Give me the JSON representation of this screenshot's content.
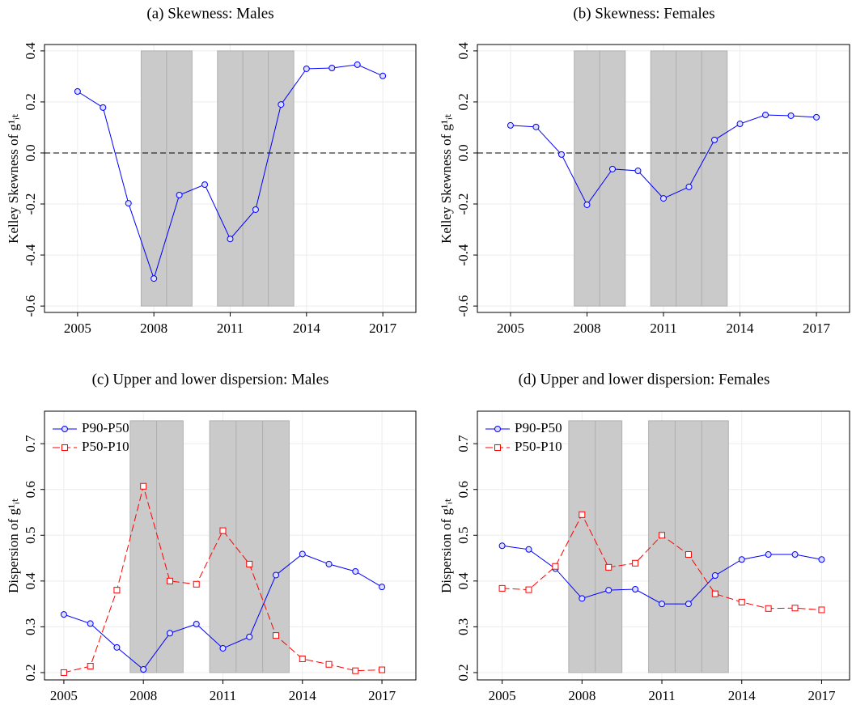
{
  "chart_data": [
    {
      "type": "line",
      "title": "(a) Skewness: Males",
      "y_label": "Kelley Skewness of g¹ᵢₜ",
      "x": [
        2005,
        2006,
        2007,
        2008,
        2009,
        2010,
        2011,
        2012,
        2013,
        2014,
        2015,
        2016,
        2017
      ],
      "xlim": [
        2003.7,
        2018.3
      ],
      "xticks": [
        2005,
        2008,
        2011,
        2014,
        2017
      ],
      "ylim": [
        -0.625,
        0.425
      ],
      "yticks": [
        -0.6,
        -0.4,
        -0.2,
        {
          "value": 0,
          "label": "0.0"
        },
        0.2,
        0.4
      ],
      "grid": true,
      "hline": 0,
      "shaded_years": [
        2008,
        2009,
        2011,
        2012,
        2013
      ],
      "shade_ylim": [
        -0.6,
        0.4
      ],
      "series": [
        {
          "color": "#0000ff",
          "marker": "circle",
          "dashed": false,
          "values": [
            0.241,
            0.178,
            -0.197,
            -0.492,
            -0.165,
            -0.124,
            -0.337,
            -0.222,
            0.19,
            0.33,
            0.333,
            0.346,
            0.302
          ]
        }
      ]
    },
    {
      "type": "line",
      "title": "(b) Skewness: Females",
      "y_label": "Kelley Skewness of g¹ᵢₜ",
      "x": [
        2005,
        2006,
        2007,
        2008,
        2009,
        2010,
        2011,
        2012,
        2013,
        2014,
        2015,
        2016,
        2017
      ],
      "xlim": [
        2003.7,
        2018.3
      ],
      "xticks": [
        2005,
        2008,
        2011,
        2014,
        2017
      ],
      "ylim": [
        -0.625,
        0.425
      ],
      "yticks": [
        -0.6,
        -0.4,
        -0.2,
        {
          "value": 0,
          "label": "0.0"
        },
        0.2,
        0.4
      ],
      "grid": true,
      "hline": 0,
      "shaded_years": [
        2008,
        2009,
        2011,
        2012,
        2013
      ],
      "shade_ylim": [
        -0.6,
        0.4
      ],
      "series": [
        {
          "color": "#0000ff",
          "marker": "circle",
          "dashed": false,
          "values": [
            0.108,
            0.102,
            -0.006,
            -0.203,
            -0.063,
            -0.07,
            -0.178,
            -0.133,
            0.051,
            0.114,
            0.149,
            0.146,
            0.14
          ]
        }
      ]
    },
    {
      "type": "line",
      "title": "(c) Upper and lower dispersion: Males",
      "y_label": "Dispersion of g¹ᵢₜ",
      "x": [
        2005,
        2006,
        2007,
        2008,
        2009,
        2010,
        2011,
        2012,
        2013,
        2014,
        2015,
        2016,
        2017
      ],
      "xlim": [
        2004.27,
        2018.28
      ],
      "xticks": [
        2005,
        2008,
        2011,
        2014,
        2017
      ],
      "ylim": [
        0.184,
        0.771
      ],
      "yticks": [
        0.2,
        0.3,
        0.4,
        0.5,
        0.6,
        0.7
      ],
      "grid": true,
      "legend": "upper left",
      "shaded_years": [
        2008,
        2009,
        2011,
        2012,
        2013
      ],
      "shade_ylim": [
        0.2,
        0.75
      ],
      "series": [
        {
          "name": "P90-P50",
          "color": "#0000ff",
          "marker": "circle",
          "dashed": false,
          "values": [
            0.327,
            0.307,
            0.255,
            0.207,
            0.286,
            0.306,
            0.253,
            0.278,
            0.413,
            0.459,
            0.437,
            0.421,
            0.387
          ]
        },
        {
          "name": "P50-P10",
          "color": "#ff0000",
          "marker": "square",
          "dashed": true,
          "values": [
            0.2,
            0.214,
            0.38,
            0.607,
            0.4,
            0.393,
            0.51,
            0.437,
            0.281,
            0.23,
            0.218,
            0.204,
            0.206
          ]
        }
      ]
    },
    {
      "type": "line",
      "title": "(d) Upper and lower dispersion: Females",
      "y_label": "Dispersion of g¹ᵢₜ",
      "x": [
        2005,
        2006,
        2007,
        2008,
        2009,
        2010,
        2011,
        2012,
        2013,
        2014,
        2015,
        2016,
        2017
      ],
      "xlim": [
        2004.07,
        2018.05
      ],
      "xticks": [
        2005,
        2008,
        2011,
        2014,
        2017
      ],
      "ylim": [
        0.184,
        0.771
      ],
      "yticks": [
        0.2,
        0.3,
        0.4,
        0.5,
        0.6,
        0.7
      ],
      "grid": true,
      "legend": "upper left",
      "shaded_years": [
        2008,
        2009,
        2011,
        2012,
        2013
      ],
      "shade_ylim": [
        0.2,
        0.75
      ],
      "series": [
        {
          "name": "P90-P50",
          "color": "#0000ff",
          "marker": "circle",
          "dashed": false,
          "values": [
            0.477,
            0.469,
            0.427,
            0.362,
            0.38,
            0.382,
            0.35,
            0.35,
            0.412,
            0.447,
            0.458,
            0.458,
            0.447
          ]
        },
        {
          "name": "P50-P10",
          "color": "#ff0000",
          "marker": "square",
          "dashed": true,
          "values": [
            0.384,
            0.381,
            0.432,
            0.545,
            0.43,
            0.439,
            0.5,
            0.458,
            0.372,
            0.354,
            0.34,
            0.341,
            0.337
          ]
        }
      ]
    }
  ]
}
